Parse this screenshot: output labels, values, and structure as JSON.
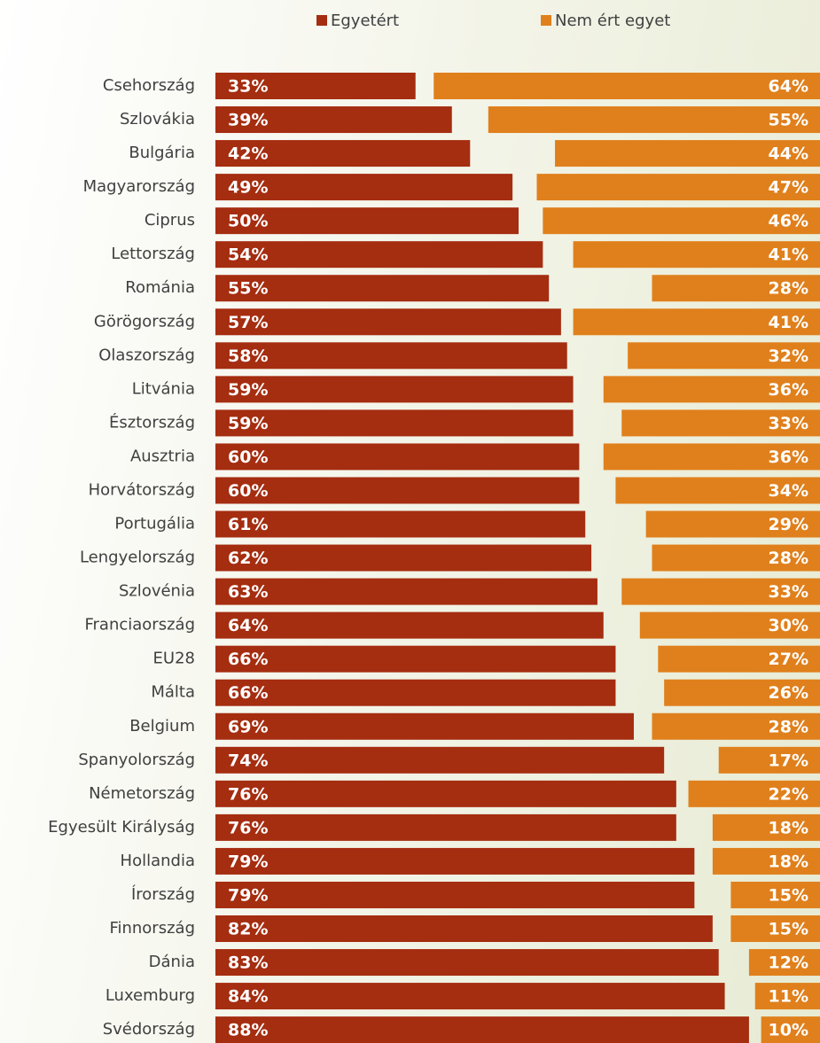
{
  "chart_data": {
    "type": "bar",
    "orientation": "horizontal",
    "categories": [
      "Csehország",
      "Szlovákia",
      "Bulgária",
      "Magyarország",
      "Ciprus",
      "Lettország",
      "Románia",
      "Görögország",
      "Olaszország",
      "Litvánia",
      "Észtország",
      "Ausztria",
      "Horvátország",
      "Portugália",
      "Lengyelország",
      "Szlovénia",
      "Franciaország",
      "EU28",
      "Málta",
      "Belgium",
      "Spanyolország",
      "Németország",
      "Egyesült Királyság",
      "Hollandia",
      "Írország",
      "Finnország",
      "Dánia",
      "Luxemburg",
      "Svédország"
    ],
    "series": [
      {
        "name": "Egyetért",
        "color": "#a52d10",
        "anchor": "left",
        "values": [
          33,
          39,
          42,
          49,
          50,
          54,
          55,
          57,
          58,
          59,
          59,
          60,
          60,
          61,
          62,
          63,
          64,
          66,
          66,
          69,
          74,
          76,
          76,
          79,
          79,
          82,
          83,
          84,
          88
        ],
        "value_labels": [
          "33%",
          "39%",
          "42%",
          "49%",
          "50%",
          "54%",
          "55%",
          "57%",
          "58%",
          "59%",
          "59%",
          "60%",
          "60%",
          "61%",
          "62%",
          "63%",
          "64%",
          "66%",
          "66%",
          "69%",
          "74%",
          "76%",
          "76%",
          "79%",
          "79%",
          "82%",
          "83%",
          "84%",
          "88%"
        ]
      },
      {
        "name": "Nem ért egyet",
        "color": "#e0801c",
        "anchor": "right",
        "values": [
          64,
          55,
          44,
          47,
          46,
          41,
          28,
          41,
          32,
          36,
          33,
          36,
          34,
          29,
          28,
          33,
          30,
          27,
          26,
          28,
          17,
          22,
          18,
          18,
          15,
          15,
          12,
          11,
          10
        ],
        "value_labels": [
          "64%",
          "55%",
          "44%",
          "47%",
          "46%",
          "41%",
          "28%",
          "41%",
          "32%",
          "36%",
          "33%",
          "36%",
          "34%",
          "29%",
          "28%",
          "33%",
          "30%",
          "27%",
          "26%",
          "28%",
          "17%",
          "22%",
          "18%",
          "18%",
          "15%",
          "15%",
          "12%",
          "11%",
          "10%"
        ]
      }
    ],
    "xlim": [
      0,
      100
    ],
    "legend": "top"
  }
}
